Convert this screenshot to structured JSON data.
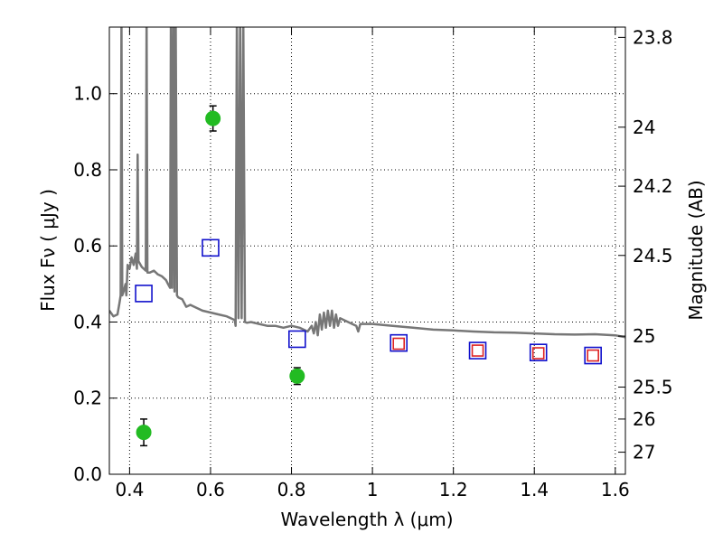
{
  "chart_data": {
    "type": "scatter",
    "xlabel": "Wavelength  λ (μm)",
    "ylabel_left": "Flux  Fν  ( μJy )",
    "ylabel_right": "Magnitude (AB)",
    "xlim": [
      0.35,
      1.625
    ],
    "ylim": [
      0.0,
      1.175
    ],
    "x_ticks": [
      {
        "value": 0.4,
        "label": "0.4"
      },
      {
        "value": 0.6,
        "label": "0.6"
      },
      {
        "value": 0.8,
        "label": "0.8"
      },
      {
        "value": 1.0,
        "label": "1"
      },
      {
        "value": 1.2,
        "label": "1.2"
      },
      {
        "value": 1.4,
        "label": "1.4"
      },
      {
        "value": 1.6,
        "label": "1.6"
      }
    ],
    "y_ticks": [
      {
        "value": 0.0,
        "label": "0.0"
      },
      {
        "value": 0.2,
        "label": "0.2"
      },
      {
        "value": 0.4,
        "label": "0.4"
      },
      {
        "value": 0.6,
        "label": "0.6"
      },
      {
        "value": 0.8,
        "label": "0.8"
      },
      {
        "value": 1.0,
        "label": "1.0"
      }
    ],
    "mag_ticks": [
      {
        "flux": 1.148,
        "label": "23.8"
      },
      {
        "flux": 0.912,
        "label": "24"
      },
      {
        "flux": 0.757,
        "label": "24.2"
      },
      {
        "flux": 0.575,
        "label": "24.5"
      },
      {
        "flux": 0.363,
        "label": "25"
      },
      {
        "flux": 0.229,
        "label": "25.5"
      },
      {
        "flux": 0.145,
        "label": "26"
      },
      {
        "flux": 0.058,
        "label": "27"
      }
    ],
    "grid": true,
    "series": [
      {
        "kind": "observed",
        "marker": "circle",
        "color": "#22bb22",
        "points": [
          {
            "x": 0.435,
            "y": 0.11,
            "err": 0.035
          },
          {
            "x": 0.606,
            "y": 0.935,
            "err": 0.033
          },
          {
            "x": 0.814,
            "y": 0.258,
            "err": 0.022
          }
        ]
      },
      {
        "kind": "model-large",
        "marker": "square",
        "color": "#1010cc",
        "points": [
          {
            "x": 0.435,
            "y": 0.475
          },
          {
            "x": 0.6,
            "y": 0.595
          },
          {
            "x": 0.814,
            "y": 0.355
          },
          {
            "x": 1.065,
            "y": 0.345
          },
          {
            "x": 1.26,
            "y": 0.325
          },
          {
            "x": 1.41,
            "y": 0.32
          },
          {
            "x": 1.545,
            "y": 0.312
          }
        ]
      },
      {
        "kind": "model-small",
        "marker": "square",
        "color": "#dd2222",
        "points": [
          {
            "x": 1.065,
            "y": 0.343
          },
          {
            "x": 1.26,
            "y": 0.325
          },
          {
            "x": 1.41,
            "y": 0.318
          },
          {
            "x": 1.545,
            "y": 0.312
          }
        ]
      }
    ],
    "spectrum": {
      "color": "#777777",
      "points": [
        [
          0.35,
          0.43
        ],
        [
          0.36,
          0.415
        ],
        [
          0.37,
          0.42
        ],
        [
          0.375,
          0.45
        ],
        [
          0.378,
          0.47
        ],
        [
          0.38,
          1.2
        ],
        [
          0.382,
          0.47
        ],
        [
          0.385,
          0.48
        ],
        [
          0.39,
          0.5
        ],
        [
          0.392,
          0.47
        ],
        [
          0.395,
          0.55
        ],
        [
          0.4,
          0.54
        ],
        [
          0.405,
          0.57
        ],
        [
          0.41,
          0.55
        ],
        [
          0.415,
          0.58
        ],
        [
          0.418,
          0.54
        ],
        [
          0.42,
          0.84
        ],
        [
          0.422,
          0.56
        ],
        [
          0.43,
          0.545
        ],
        [
          0.44,
          0.535
        ],
        [
          0.442,
          1.2
        ],
        [
          0.444,
          0.53
        ],
        [
          0.45,
          0.53
        ],
        [
          0.46,
          0.535
        ],
        [
          0.47,
          0.525
        ],
        [
          0.48,
          0.52
        ],
        [
          0.49,
          0.51
        ],
        [
          0.495,
          0.5
        ],
        [
          0.5,
          0.49
        ],
        [
          0.502,
          1.2
        ],
        [
          0.505,
          0.49
        ],
        [
          0.508,
          1.2
        ],
        [
          0.511,
          0.48
        ],
        [
          0.514,
          1.2
        ],
        [
          0.517,
          0.47
        ],
        [
          0.52,
          0.465
        ],
        [
          0.53,
          0.46
        ],
        [
          0.54,
          0.44
        ],
        [
          0.55,
          0.445
        ],
        [
          0.56,
          0.44
        ],
        [
          0.57,
          0.435
        ],
        [
          0.58,
          0.43
        ],
        [
          0.6,
          0.425
        ],
        [
          0.62,
          0.42
        ],
        [
          0.64,
          0.415
        ],
        [
          0.66,
          0.405
        ],
        [
          0.662,
          0.39
        ],
        [
          0.665,
          1.2
        ],
        [
          0.669,
          0.41
        ],
        [
          0.673,
          1.2
        ],
        [
          0.677,
          0.41
        ],
        [
          0.681,
          1.2
        ],
        [
          0.685,
          0.4
        ],
        [
          0.69,
          0.398
        ],
        [
          0.7,
          0.4
        ],
        [
          0.72,
          0.395
        ],
        [
          0.74,
          0.39
        ],
        [
          0.76,
          0.39
        ],
        [
          0.78,
          0.385
        ],
        [
          0.8,
          0.39
        ],
        [
          0.82,
          0.385
        ],
        [
          0.84,
          0.375
        ],
        [
          0.85,
          0.39
        ],
        [
          0.855,
          0.37
        ],
        [
          0.86,
          0.4
        ],
        [
          0.865,
          0.365
        ],
        [
          0.87,
          0.42
        ],
        [
          0.875,
          0.38
        ],
        [
          0.88,
          0.425
        ],
        [
          0.885,
          0.385
        ],
        [
          0.89,
          0.43
        ],
        [
          0.895,
          0.39
        ],
        [
          0.9,
          0.43
        ],
        [
          0.905,
          0.385
        ],
        [
          0.91,
          0.42
        ],
        [
          0.915,
          0.39
        ],
        [
          0.92,
          0.41
        ],
        [
          0.93,
          0.405
        ],
        [
          0.94,
          0.4
        ],
        [
          0.95,
          0.395
        ],
        [
          0.96,
          0.39
        ],
        [
          0.965,
          0.375
        ],
        [
          0.97,
          0.395
        ],
        [
          0.98,
          0.395
        ],
        [
          1.0,
          0.395
        ],
        [
          1.05,
          0.39
        ],
        [
          1.1,
          0.385
        ],
        [
          1.15,
          0.38
        ],
        [
          1.2,
          0.378
        ],
        [
          1.25,
          0.375
        ],
        [
          1.3,
          0.373
        ],
        [
          1.35,
          0.372
        ],
        [
          1.4,
          0.37
        ],
        [
          1.45,
          0.368
        ],
        [
          1.5,
          0.367
        ],
        [
          1.55,
          0.368
        ],
        [
          1.6,
          0.365
        ],
        [
          1.625,
          0.36
        ]
      ]
    }
  }
}
